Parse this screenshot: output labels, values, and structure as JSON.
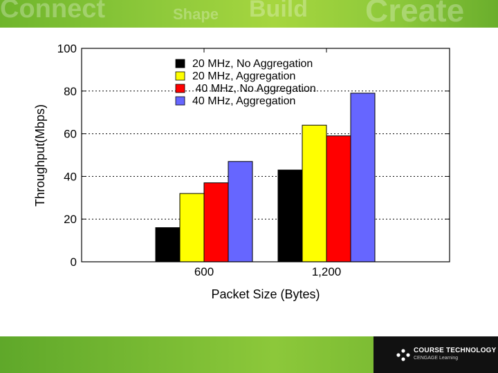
{
  "banner": {
    "words": [
      "Connect",
      "Shape",
      "Build",
      "Create"
    ]
  },
  "footer": {
    "logo_line1": "COURSE TECHNOLOGY",
    "logo_line2": "CENGAGE Learning"
  },
  "chart_data": {
    "type": "bar",
    "title": "",
    "xlabel": "Packet Size (Bytes)",
    "ylabel": "Throughput(Mbps)",
    "ylim": [
      0,
      100
    ],
    "yticks": [
      0,
      20,
      40,
      60,
      80,
      100
    ],
    "categories": [
      "600",
      "1,200"
    ],
    "grid": "horizontal dotted",
    "legend_position": "top-center",
    "series": [
      {
        "name": "20 MHz, No Aggregation",
        "color": "#000000",
        "values": [
          16,
          43
        ]
      },
      {
        "name": "20 MHz, Aggregation",
        "color": "#ffff00",
        "values": [
          32,
          64
        ]
      },
      {
        "name": " 40 MHz, No Aggregation",
        "color": "#ff0000",
        "values": [
          37,
          59
        ]
      },
      {
        "name": "40 MHz, Aggregation",
        "color": "#6666ff",
        "values": [
          47,
          79
        ]
      }
    ]
  }
}
